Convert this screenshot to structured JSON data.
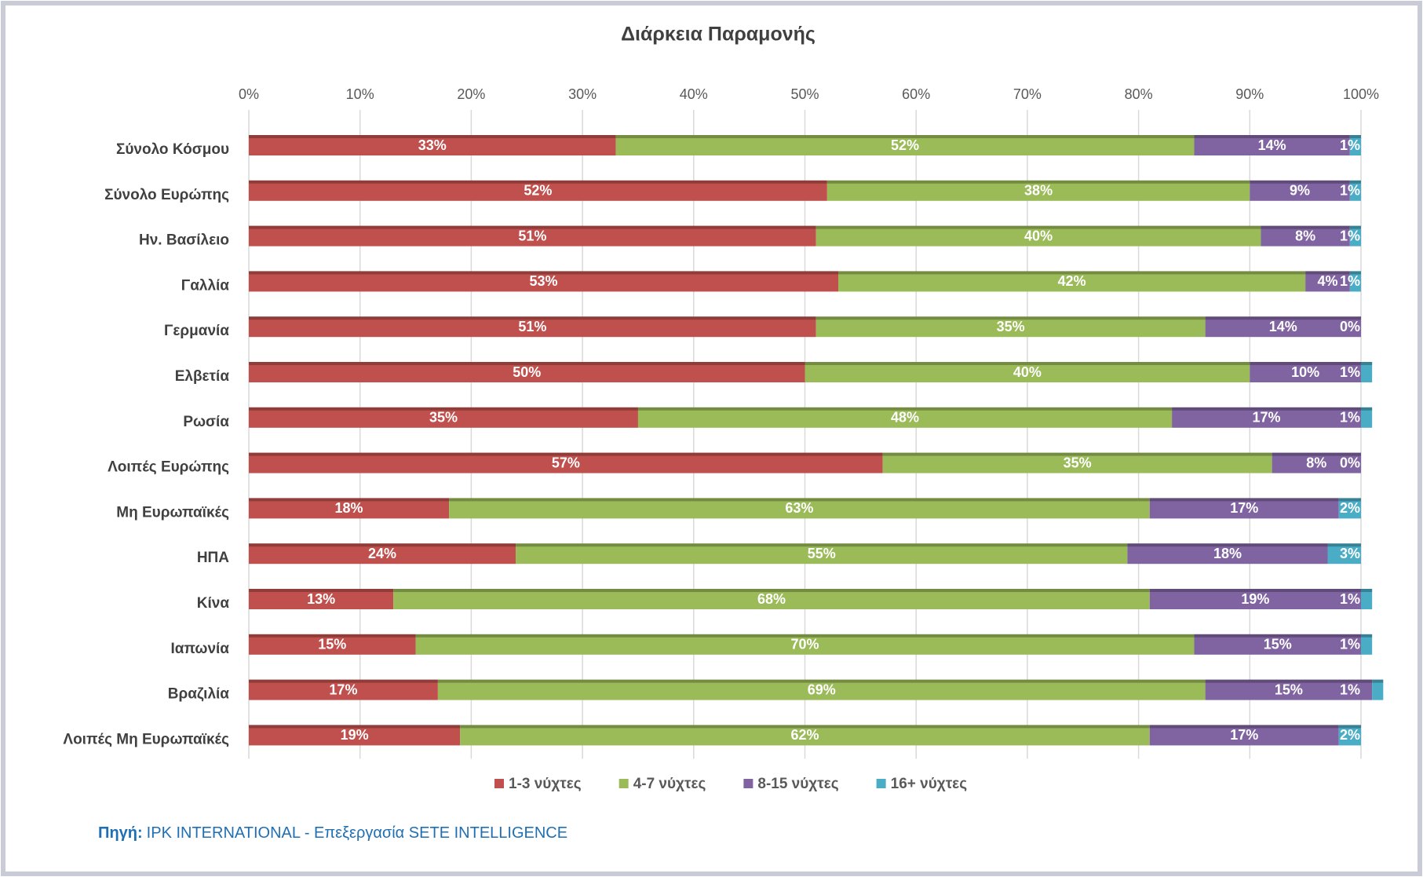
{
  "chart_data": {
    "type": "stacked-barh",
    "title": "Διάρκεια Παραμονής",
    "categories": [
      "Σύνολο Κόσμου",
      "Σύνολο Ευρώπης",
      "Ην. Βασίλειο",
      "Γαλλία",
      "Γερμανία",
      "Ελβετία",
      "Ρωσία",
      "Λοιπές Ευρώπης",
      "Μη Ευρωπαϊκές",
      "ΗΠΑ",
      "Κίνα",
      "Ιαπωνία",
      "Βραζιλία",
      "Λοιπές Μη Ευρωπαϊκές"
    ],
    "series": [
      {
        "name": "1-3 νύχτες",
        "color": "#c0504d",
        "values": [
          33,
          52,
          51,
          53,
          51,
          50,
          35,
          57,
          18,
          24,
          13,
          15,
          17,
          19
        ],
        "value_labels": [
          "33%",
          "52%",
          "51%",
          "53%",
          "51%",
          "50%",
          "35%",
          "57%",
          "18%",
          "24%",
          "13%",
          "15%",
          "17%",
          "19%"
        ]
      },
      {
        "name": "4-7 νύχτες",
        "color": "#9bbb59",
        "values": [
          52,
          38,
          40,
          42,
          35,
          40,
          48,
          35,
          63,
          55,
          68,
          70,
          69,
          62
        ],
        "value_labels": [
          "52%",
          "38%",
          "40%",
          "42%",
          "35%",
          "40%",
          "48%",
          "35%",
          "63%",
          "55%",
          "68%",
          "70%",
          "69%",
          "62%"
        ]
      },
      {
        "name": "8-15 νύχτες",
        "color": "#8064a2",
        "values": [
          14,
          9,
          8,
          4,
          14,
          10,
          17,
          8,
          17,
          18,
          19,
          15,
          15,
          17
        ],
        "value_labels": [
          "14%",
          "9%",
          "8%",
          "4%",
          "14%",
          "10%",
          "17%",
          "8%",
          "17%",
          "18%",
          "19%",
          "15%",
          "15%",
          "17%"
        ]
      },
      {
        "name": "16+ νύχτες",
        "color": "#4bacc6",
        "values": [
          1,
          1,
          1,
          1,
          0,
          1,
          1,
          0,
          2,
          3,
          1,
          1,
          1,
          2
        ],
        "value_labels": [
          "1%",
          "1%",
          "1%",
          "1%",
          "0%",
          "1%",
          "1%",
          "0%",
          "2%",
          "3%",
          "1%",
          "1%",
          "1%",
          "2%"
        ]
      }
    ],
    "xlim": [
      0,
      100
    ],
    "xticks": [
      {
        "value": 0,
        "label": "0%"
      },
      {
        "value": 10,
        "label": "10%"
      },
      {
        "value": 20,
        "label": "20%"
      },
      {
        "value": 30,
        "label": "30%"
      },
      {
        "value": 40,
        "label": "40%"
      },
      {
        "value": 50,
        "label": "50%"
      },
      {
        "value": 60,
        "label": "60%"
      },
      {
        "value": 70,
        "label": "70%"
      },
      {
        "value": 80,
        "label": "80%"
      },
      {
        "value": 90,
        "label": "90%"
      },
      {
        "value": 100,
        "label": "100%"
      }
    ],
    "grid": true,
    "legend": "bottom",
    "source_label": "Πηγή:",
    "source": "IPK INTERNATIONAL - Επεξεργασία SETE INTELLIGENCE"
  }
}
